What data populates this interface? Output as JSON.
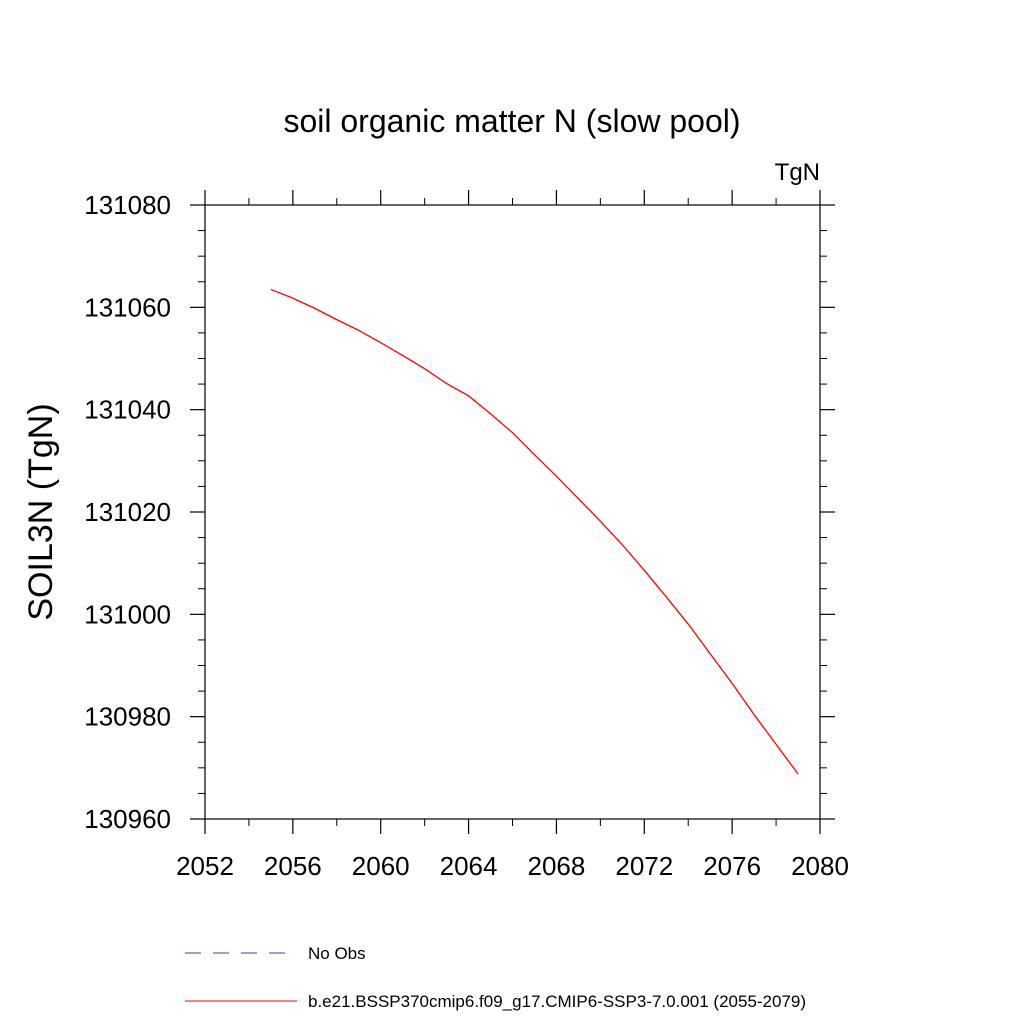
{
  "chart_data": {
    "type": "line",
    "title": "soil organic matter N (slow pool)",
    "units_label": "TgN",
    "ylabel": "SOIL3N  (TgN)",
    "xlabel": "",
    "xlim": [
      2052,
      2080
    ],
    "ylim": [
      130960,
      131080
    ],
    "x_ticks": [
      2052,
      2056,
      2060,
      2064,
      2068,
      2072,
      2076,
      2080
    ],
    "y_ticks": [
      130960,
      130980,
      131000,
      131020,
      131040,
      131060,
      131080
    ],
    "x_minor_step": 2,
    "y_minor_step": 5,
    "grid": false,
    "legend_position": "bottom",
    "series": [
      {
        "name": "No Obs",
        "color": "#3f3fbf",
        "dash": "dashed",
        "x": [],
        "y": []
      },
      {
        "name": "b.e21.BSSP370cmip6.f09_g17.CMIP6-SSP3-7.0.001 (2055-2079)",
        "color": "#ff0000",
        "dash": "solid",
        "x": [
          2055,
          2056,
          2057,
          2058,
          2059,
          2060,
          2061,
          2062,
          2063,
          2064,
          2065,
          2066,
          2067,
          2068,
          2069,
          2070,
          2071,
          2072,
          2073,
          2074,
          2075,
          2076,
          2077,
          2078,
          2079
        ],
        "y": [
          131063.5,
          131061.8,
          131059.8,
          131057.6,
          131055.5,
          131053.1,
          131050.6,
          131048.0,
          131045.1,
          131042.7,
          131039.2,
          131035.5,
          131031.2,
          131027.0,
          131022.6,
          131018.2,
          131013.6,
          131008.6,
          131003.4,
          130998.1,
          130992.3,
          130986.5,
          130980.4,
          130974.6,
          130968.8
        ]
      }
    ]
  }
}
